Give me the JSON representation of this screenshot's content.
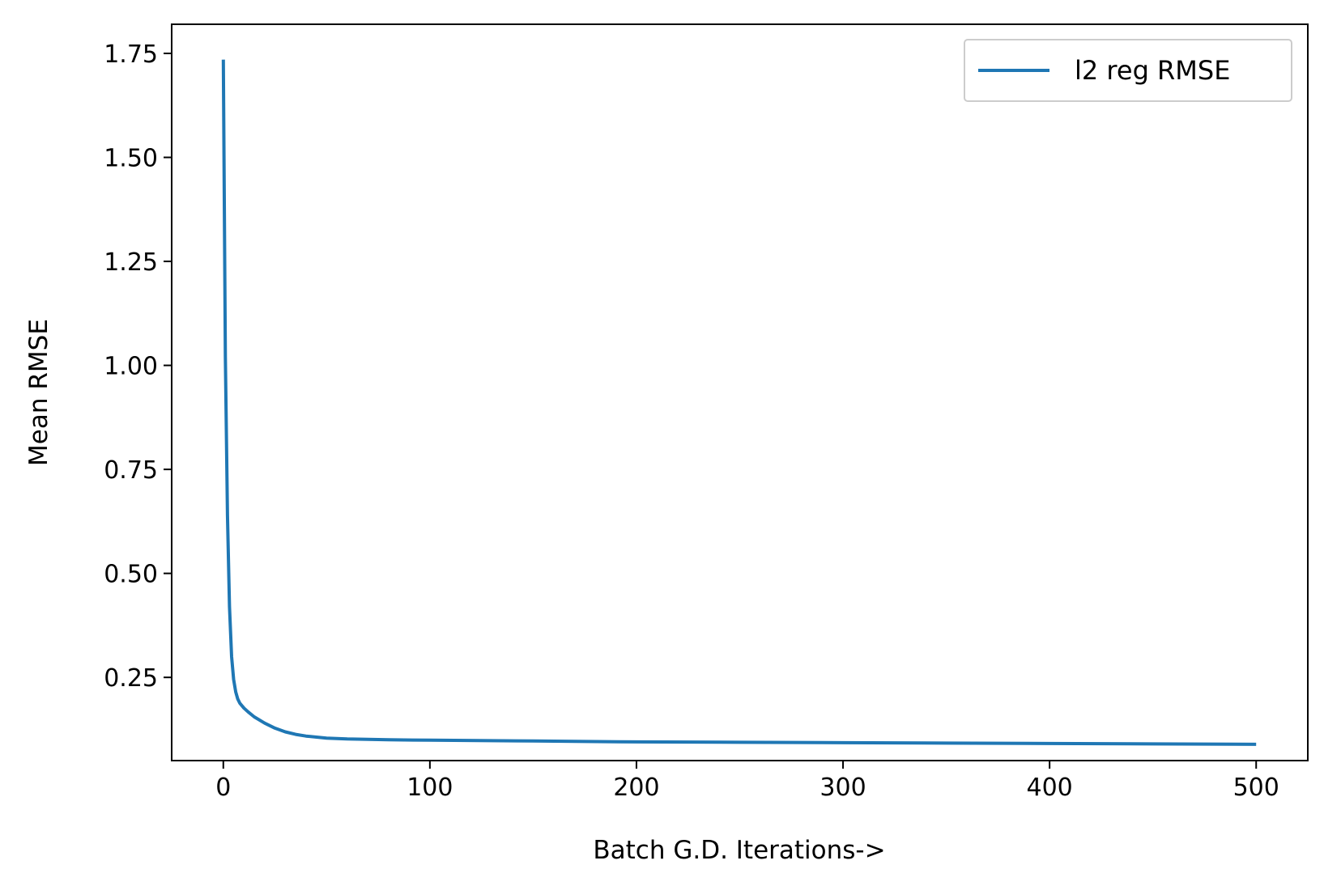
{
  "chart_data": {
    "type": "line",
    "title": "",
    "xlabel": "Batch G.D. Iterations->",
    "ylabel": "Mean RMSE",
    "xlim": [
      -25,
      525
    ],
    "ylim": [
      0.05,
      1.82
    ],
    "x_ticks": [
      0,
      100,
      200,
      300,
      400,
      500
    ],
    "x_tick_labels": [
      "0",
      "100",
      "200",
      "300",
      "400",
      "500"
    ],
    "y_ticks": [
      0.25,
      0.5,
      0.75,
      1.0,
      1.25,
      1.5,
      1.75
    ],
    "y_tick_labels": [
      "0.25",
      "0.50",
      "0.75",
      "1.00",
      "1.25",
      "1.50",
      "1.75"
    ],
    "grid": false,
    "legend_position": "top-right",
    "series": [
      {
        "name": "l2 reg RMSE",
        "color": "#1f77b4",
        "x": [
          0,
          1,
          2,
          3,
          4,
          5,
          6,
          7,
          8,
          10,
          12,
          15,
          20,
          25,
          30,
          35,
          40,
          50,
          60,
          80,
          100,
          150,
          200,
          250,
          300,
          350,
          400,
          450,
          500
        ],
        "values": [
          1.735,
          1.02,
          0.64,
          0.42,
          0.3,
          0.245,
          0.215,
          0.198,
          0.188,
          0.176,
          0.167,
          0.155,
          0.14,
          0.128,
          0.119,
          0.113,
          0.109,
          0.104,
          0.102,
          0.1,
          0.099,
          0.097,
          0.095,
          0.094,
          0.093,
          0.092,
          0.091,
          0.09,
          0.089
        ]
      }
    ]
  }
}
